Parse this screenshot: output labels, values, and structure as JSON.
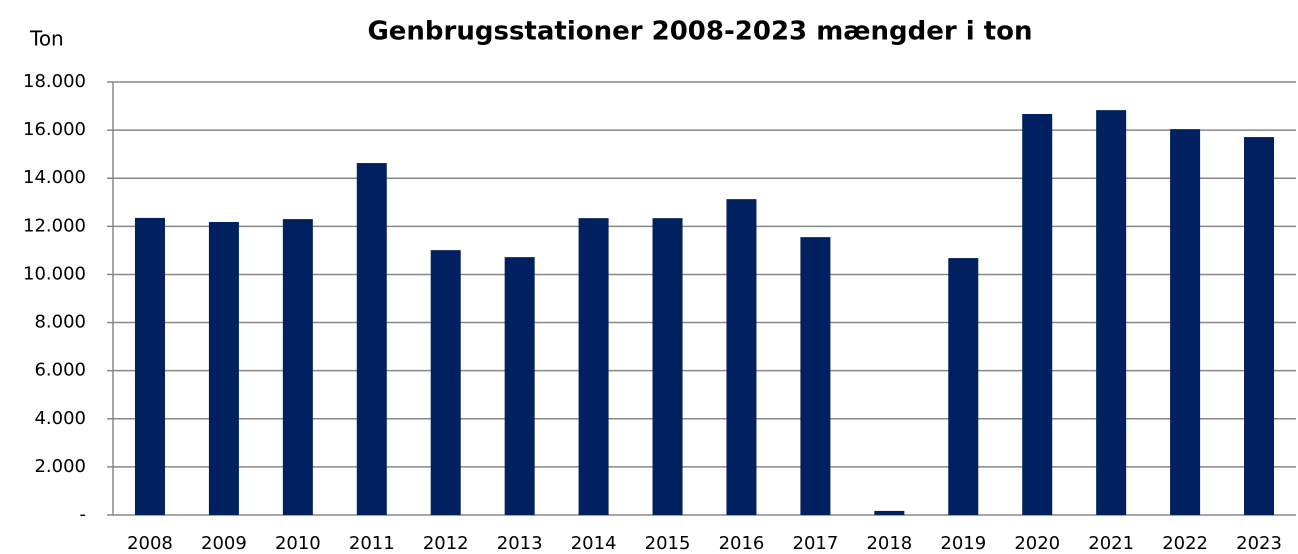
{
  "chart_data": {
    "type": "bar",
    "title": "Genbrugsstationer 2008-2023 mængder i ton",
    "y_label": "Ton",
    "categories": [
      "2008",
      "2009",
      "2010",
      "2011",
      "2012",
      "2013",
      "2014",
      "2015",
      "2016",
      "2017",
      "2018",
      "2019",
      "2020",
      "2021",
      "2022",
      "2023"
    ],
    "values": [
      12350,
      12180,
      12300,
      14630,
      11010,
      10720,
      12340,
      12340,
      13130,
      11550,
      170,
      10680,
      16670,
      16830,
      16040,
      15710
    ],
    "color": "#002060",
    "ylim": [
      0,
      18000
    ],
    "yticks": [
      {
        "value": 0,
        "label": "-"
      },
      {
        "value": 2000,
        "label": "2.000"
      },
      {
        "value": 4000,
        "label": "4.000"
      },
      {
        "value": 6000,
        "label": "6.000"
      },
      {
        "value": 8000,
        "label": "8.000"
      },
      {
        "value": 10000,
        "label": "10.000"
      },
      {
        "value": 12000,
        "label": "12.000"
      },
      {
        "value": 14000,
        "label": "14.000"
      },
      {
        "value": 16000,
        "label": "16.000"
      },
      {
        "value": 18000,
        "label": "18.000"
      }
    ],
    "grid": true
  }
}
